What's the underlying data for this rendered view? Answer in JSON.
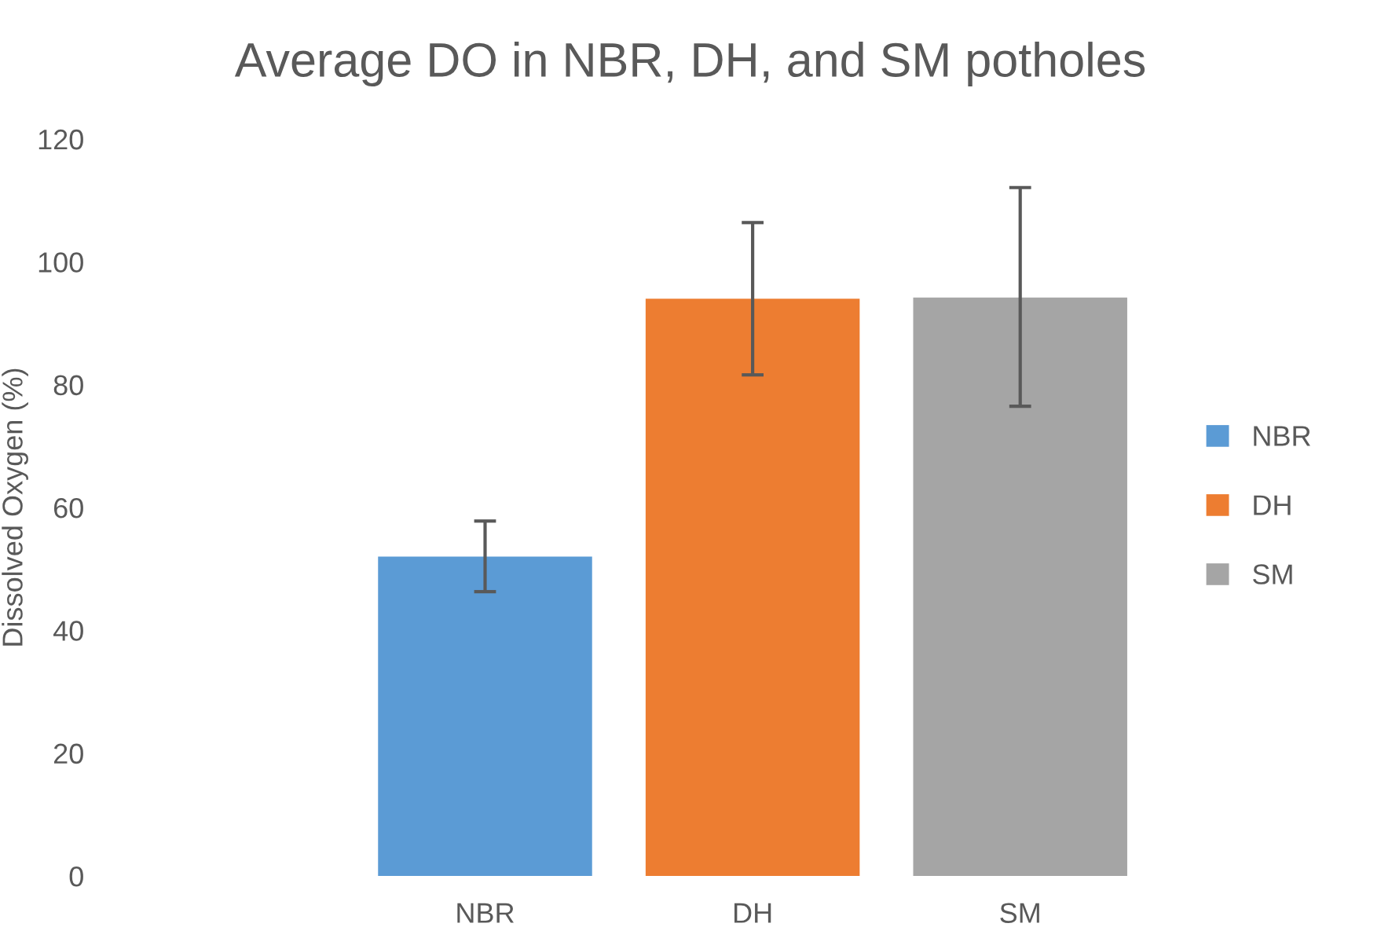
{
  "chart_data": {
    "type": "bar",
    "title": "Average DO in NBR, DH, and SM potholes",
    "ylabel": "Dissolved Oxygen (%)",
    "categories": [
      "NBR",
      "DH",
      "SM"
    ],
    "series": [
      {
        "name": "NBR",
        "color": "#5b9bd5",
        "values": [
          52,
          null,
          null
        ],
        "errors": [
          [
            46.3,
            57.8
          ],
          null,
          null
        ]
      },
      {
        "name": "DH",
        "color": "#ed7d31",
        "values": [
          null,
          94,
          null
        ],
        "errors": [
          null,
          [
            81.6,
            106.4
          ],
          null
        ]
      },
      {
        "name": "SM",
        "color": "#a5a5a5",
        "values": [
          null,
          null,
          94.2
        ],
        "errors": [
          null,
          null,
          [
            76.5,
            112.1
          ]
        ]
      }
    ],
    "ylim": [
      0,
      120
    ],
    "yticks": [
      0,
      20,
      40,
      60,
      80,
      100,
      120
    ],
    "grid": false,
    "legend": "right"
  }
}
